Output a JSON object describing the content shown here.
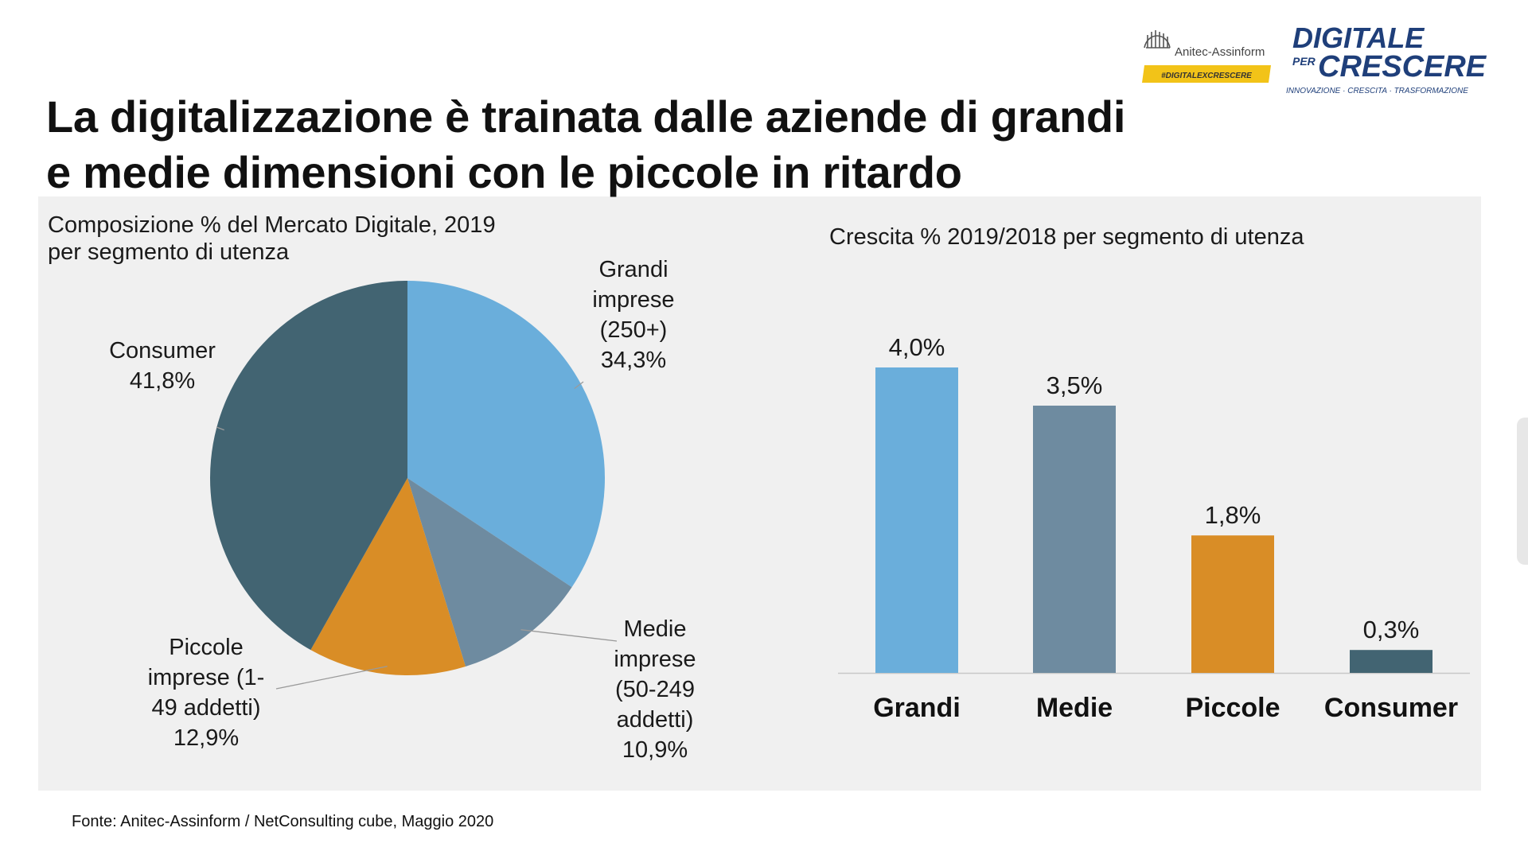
{
  "title": {
    "line1": "La digitalizzazione è trainata dalle aziende di grandi",
    "line2": "e medie dimensioni con le piccole in ritardo"
  },
  "logos": {
    "assoc_name": "Anitec-Assinform",
    "assoc_tag": "#DIGITALEXCRESCERE",
    "brand_line1": "DIGITALE",
    "brand_per": "PER",
    "brand_line2": "CRESCERE",
    "brand_tagline": "INNOVAZIONE · CRESCITA · TRASFORMAZIONE"
  },
  "source": "Fonte: Anitec-Assinform / NetConsulting cube, Maggio  2020",
  "colors": {
    "grandi": "#6aaedb",
    "medie": "#6e8ba0",
    "piccole": "#d98d26",
    "consumer": "#426472",
    "panel": "#f0f0f0"
  },
  "chart_data": [
    {
      "type": "pie",
      "title_line1": "Composizione % del Mercato Digitale, 2019",
      "title_line2": "per segmento di utenza",
      "slices": [
        {
          "key": "grandi",
          "value": 34.3,
          "label_lines": [
            "Grandi",
            "imprese",
            "(250+)",
            "34,3%"
          ]
        },
        {
          "key": "medie",
          "value": 10.9,
          "label_lines": [
            "Medie",
            "imprese",
            "(50-249",
            "addetti)",
            "10,9%"
          ]
        },
        {
          "key": "piccole",
          "value": 12.9,
          "label_lines": [
            "Piccole",
            "imprese (1-",
            "49 addetti)",
            "12,9%"
          ]
        },
        {
          "key": "consumer",
          "value": 41.8,
          "label_lines": [
            "Consumer",
            "41,8%"
          ]
        }
      ]
    },
    {
      "type": "bar",
      "title": "Crescita % 2019/2018 per segmento di utenza",
      "categories": [
        "Grandi",
        "Medie",
        "Piccole",
        "Consumer"
      ],
      "keys": [
        "grandi",
        "medie",
        "piccole",
        "consumer"
      ],
      "values": [
        4.0,
        3.5,
        1.8,
        0.3
      ],
      "value_labels": [
        "4,0%",
        "3,5%",
        "1,8%",
        "0,3%"
      ],
      "ylim": [
        0,
        4.0
      ]
    }
  ]
}
